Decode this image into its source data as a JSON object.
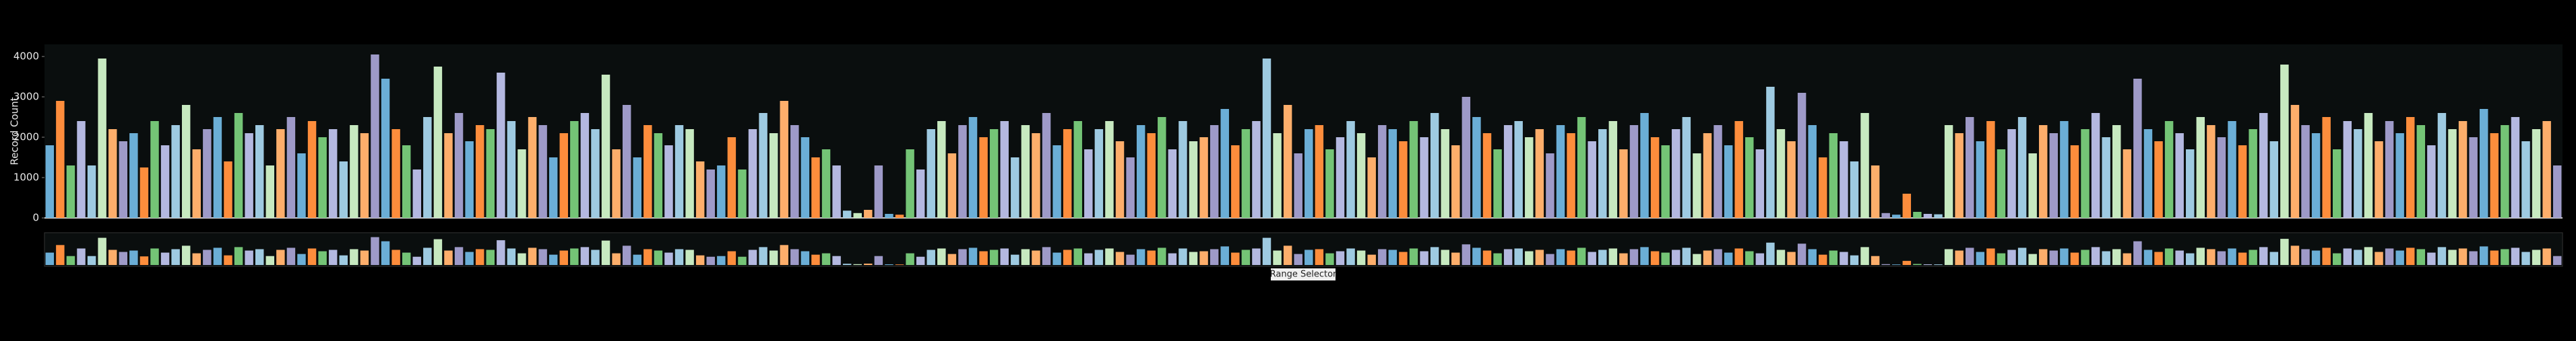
{
  "chart_data": {
    "type": "bar",
    "y_label": "Record Count",
    "range_selector_label": "Range Selector",
    "values": [
      1800,
      2900,
      1300,
      2400,
      1300,
      3950,
      2200,
      1900,
      2100,
      1250,
      2400,
      1800,
      2300,
      2800,
      1700,
      2200,
      2500,
      1400,
      2600,
      2100,
      2300,
      1300,
      2200,
      2500,
      1600,
      2400,
      2000,
      2200,
      1400,
      2300,
      2100,
      4050,
      3450,
      2200,
      1800,
      1200,
      2500,
      3750,
      2100,
      2600,
      1900,
      2300,
      2200,
      3600,
      2400,
      1700,
      2500,
      2300,
      1500,
      2100,
      2400,
      2600,
      2200,
      3550,
      1700,
      2800,
      1500,
      2300,
      2100,
      1800,
      2300,
      2200,
      1400,
      1200,
      1300,
      2000,
      1200,
      2200,
      2600,
      2100,
      2900,
      2300,
      2000,
      1500,
      1700,
      1300,
      180,
      120,
      200,
      1300,
      100,
      80,
      1700,
      1200,
      2200,
      2400,
      1600,
      2300,
      2500,
      2000,
      2200,
      2400,
      1500,
      2300,
      2100,
      2600,
      1800,
      2200,
      2400,
      1700,
      2200,
      2400,
      1900,
      1500,
      2300,
      2100,
      2500,
      1700,
      2400,
      1900,
      2000,
      2300,
      2700,
      1800,
      2200,
      2400,
      3950,
      2100,
      2800,
      1600,
      2200,
      2300,
      1700,
      2000,
      2400,
      2100,
      1500,
      2300,
      2200,
      1900,
      2400,
      2000,
      2600,
      2200,
      1800,
      3000,
      2500,
      2100,
      1700,
      2300,
      2400,
      2000,
      2200,
      1600,
      2300,
      2100,
      2500,
      1900,
      2200,
      2400,
      1700,
      2300,
      2600,
      2000,
      1800,
      2200,
      2500,
      1600,
      2100,
      2300,
      1800,
      2400,
      2000,
      1700,
      3250,
      2200,
      1900,
      3100,
      2300,
      1500,
      2100,
      1900,
      1400,
      2600,
      1300,
      120,
      80,
      600,
      150,
      100,
      90,
      2300,
      2100,
      2500,
      1900,
      2400,
      1700,
      2200,
      2500,
      1600,
      2300,
      2100,
      2400,
      1800,
      2200,
      2600,
      2000,
      2300,
      1700,
      3450,
      2200,
      1900,
      2400,
      2100,
      1700,
      2500,
      2300,
      2000,
      2400,
      1800,
      2200,
      2600,
      1900,
      3800,
      2800,
      2300,
      2100,
      2500,
      1700,
      2400,
      2200,
      2600,
      1900,
      2400,
      2100,
      2500,
      2300,
      1800,
      2600,
      2200,
      2400,
      2000,
      2700,
      2100,
      2300,
      2500,
      1900,
      2200,
      2400,
      1300
    ],
    "palette": [
      "#6baed6",
      "#fd8d3c",
      "#74c476",
      "#b4b8e0",
      "#9ecae1",
      "#c7e9c0",
      "#fdae6b",
      "#9e9ac8"
    ],
    "ylim": [
      0,
      4300
    ],
    "yticks": [
      0,
      1000,
      2000,
      3000,
      4000
    ],
    "grid": false
  }
}
